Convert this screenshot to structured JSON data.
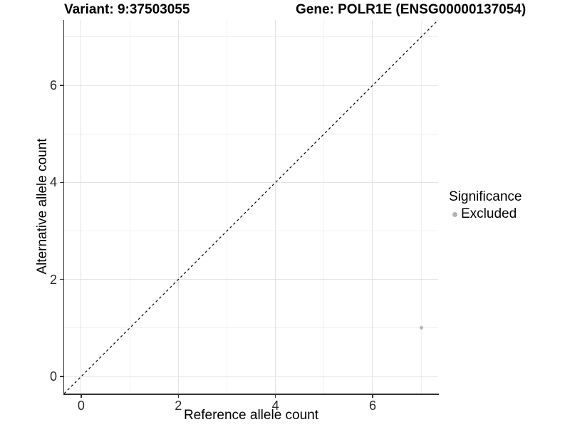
{
  "titles": {
    "left": "Variant: 9:37503055",
    "right": "Gene: POLR1E (ENSG00000137054)"
  },
  "axes": {
    "x": {
      "title": "Reference allele count"
    },
    "y": {
      "title": "Alternative allele count"
    }
  },
  "gridlines": {
    "major": [
      0,
      2,
      4,
      6
    ],
    "minor": [
      1,
      3,
      5,
      7
    ]
  },
  "legend": {
    "title": "Significance",
    "items": [
      {
        "label": "Excluded",
        "color": "#b4b4b4"
      }
    ]
  },
  "colors": {
    "axis_line": "#333333",
    "tick_label": "#2b2b2b",
    "grid_major": "#e3e3e3",
    "grid_minor": "#f1f1f1",
    "point": "#b4b4b4",
    "reference_line": "#000000",
    "background": "#ffffff"
  },
  "chart_data": {
    "type": "scatter",
    "title": "Variant: 9:37503055 | Gene: POLR1E (ENSG00000137054)",
    "xlabel": "Reference allele count",
    "ylabel": "Alternative allele count",
    "xlim": [
      -0.35,
      7.35
    ],
    "ylim": [
      -0.35,
      7.35
    ],
    "x_ticks": [
      0,
      2,
      4,
      6
    ],
    "y_ticks": [
      0,
      2,
      4,
      6
    ],
    "grid": true,
    "legend_position": "right",
    "series": [
      {
        "name": "Excluded",
        "color": "#b4b4b4",
        "points": [
          {
            "x": 7,
            "y": 1
          }
        ]
      }
    ],
    "reference_line": {
      "type": "identity",
      "style": "dashed",
      "color": "#000000"
    }
  }
}
